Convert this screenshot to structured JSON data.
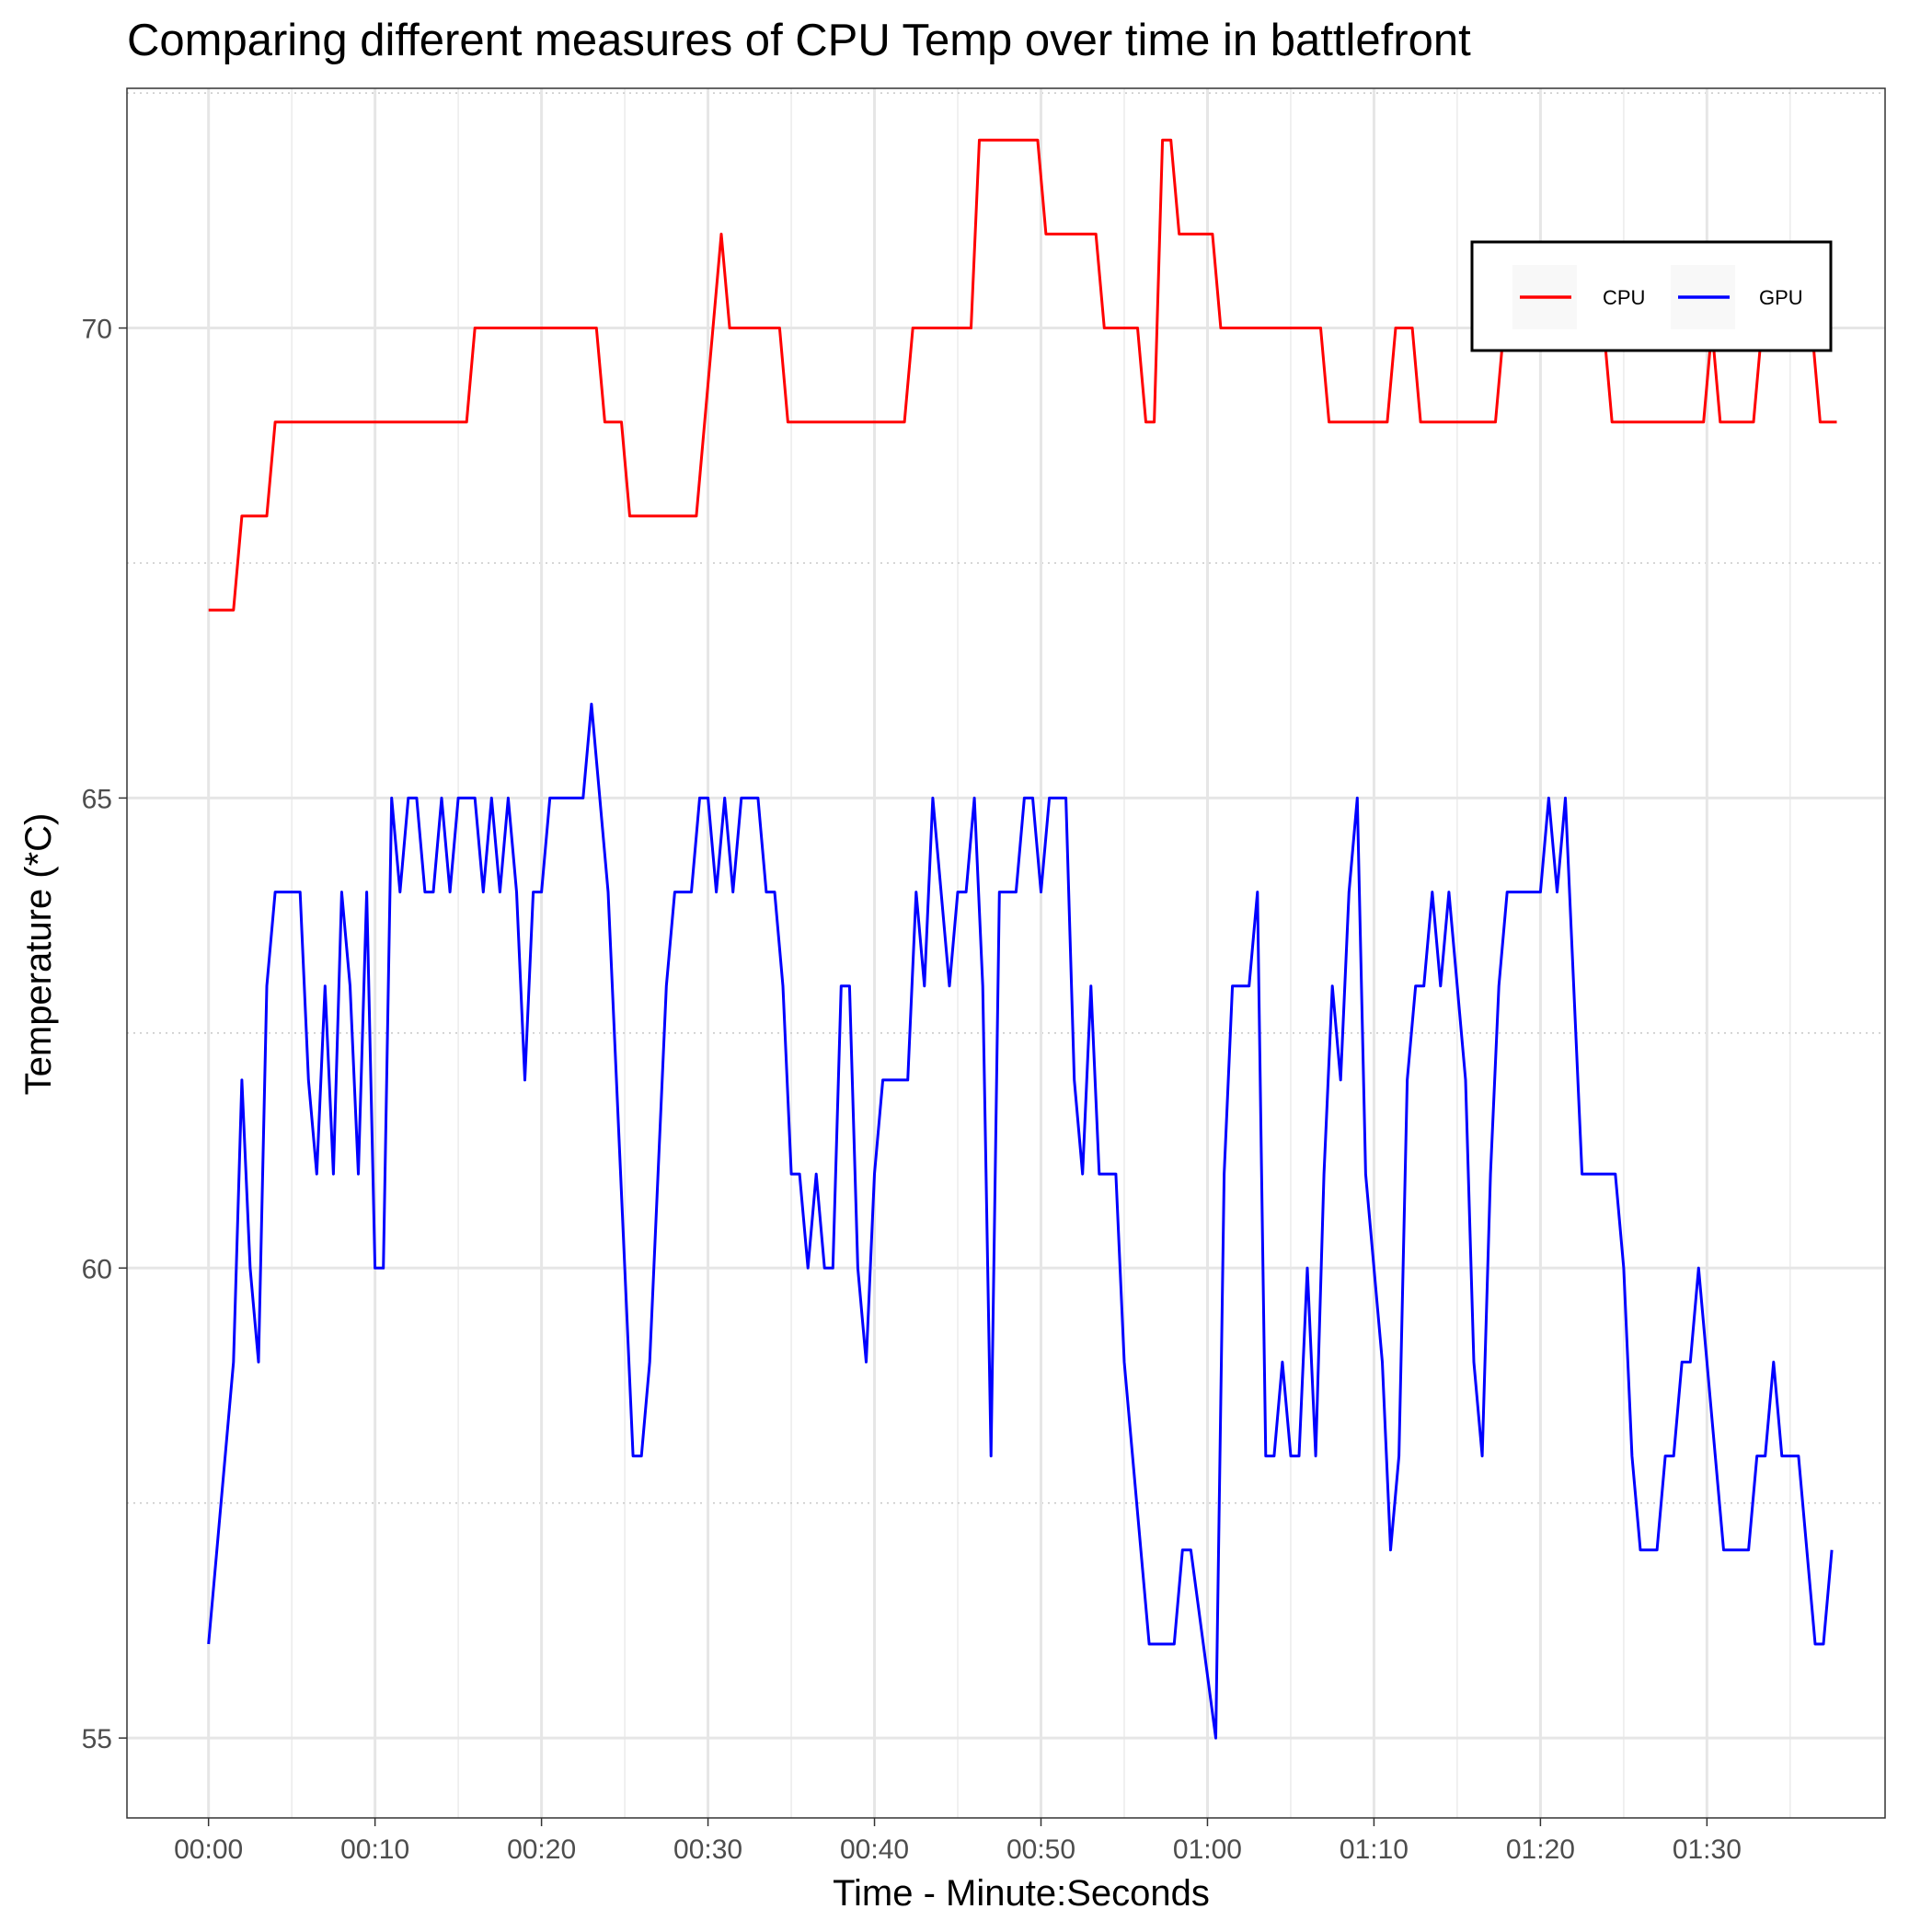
{
  "chart_data": {
    "type": "line",
    "title": "Comparing different measures of CPU Temp over time in battlefront",
    "xlabel": "Time - Minute:Seconds",
    "ylabel": "Temperature (*C)",
    "x_unit": "seconds",
    "xlim": [
      -4.9,
      100.7
    ],
    "ylim": [
      54.15,
      72.55
    ],
    "x_ticks": [
      0,
      10,
      20,
      30,
      40,
      50,
      60,
      70,
      80,
      90
    ],
    "x_tick_labels": [
      "00:00",
      "00:10",
      "00:20",
      "00:30",
      "00:40",
      "00:50",
      "01:00",
      "01:10",
      "01:20",
      "01:30"
    ],
    "y_ticks": [
      55,
      60,
      65,
      70
    ],
    "y_tick_labels": [
      "55",
      "60",
      "65",
      "70"
    ],
    "grid": true,
    "legend": {
      "position": "top-right",
      "entries": [
        "CPU",
        "GPU"
      ]
    },
    "series": [
      {
        "name": "CPU",
        "color": "#ff0000",
        "points": [
          [
            0,
            67
          ],
          [
            1.5,
            67
          ],
          [
            2,
            68
          ],
          [
            3.5,
            68
          ],
          [
            4,
            69
          ],
          [
            15.5,
            69
          ],
          [
            16,
            70
          ],
          [
            23.3,
            70
          ],
          [
            23.8,
            69
          ],
          [
            24.8,
            69
          ],
          [
            25.3,
            68
          ],
          [
            29.3,
            68
          ],
          [
            30.8,
            71
          ],
          [
            31.3,
            70
          ],
          [
            34.3,
            70
          ],
          [
            34.8,
            69
          ],
          [
            41.8,
            69
          ],
          [
            42.3,
            70
          ],
          [
            45.8,
            70
          ],
          [
            46.3,
            72
          ],
          [
            49.8,
            72
          ],
          [
            50.3,
            71
          ],
          [
            53.3,
            71
          ],
          [
            53.8,
            70
          ],
          [
            55.8,
            70
          ],
          [
            56.3,
            69
          ],
          [
            56.8,
            69
          ],
          [
            57.3,
            72
          ],
          [
            57.8,
            72
          ],
          [
            58.3,
            71
          ],
          [
            60.3,
            71
          ],
          [
            60.8,
            70
          ],
          [
            66.8,
            70
          ],
          [
            67.3,
            69
          ],
          [
            70.8,
            69
          ],
          [
            71.3,
            70
          ],
          [
            72.3,
            70
          ],
          [
            72.8,
            69
          ],
          [
            77.3,
            69
          ],
          [
            77.8,
            70
          ],
          [
            83.8,
            70
          ],
          [
            84.3,
            69
          ],
          [
            89.8,
            69
          ],
          [
            90.3,
            70
          ],
          [
            90.8,
            69
          ],
          [
            92.8,
            69
          ],
          [
            93.3,
            70
          ],
          [
            96.3,
            70
          ],
          [
            96.8,
            69
          ],
          [
            97.8,
            69
          ]
        ]
      },
      {
        "name": "GPU",
        "color": "#0000ff",
        "points": [
          [
            0,
            56
          ],
          [
            1.5,
            59
          ],
          [
            2,
            62
          ],
          [
            2.5,
            60
          ],
          [
            3,
            59
          ],
          [
            3.5,
            63
          ],
          [
            4,
            64
          ],
          [
            5.5,
            64
          ],
          [
            6,
            62
          ],
          [
            6.5,
            61
          ],
          [
            7,
            63
          ],
          [
            7.5,
            61
          ],
          [
            8,
            64
          ],
          [
            8.5,
            63
          ],
          [
            9,
            61
          ],
          [
            9.5,
            64
          ],
          [
            10,
            60
          ],
          [
            10.5,
            60
          ],
          [
            11,
            65
          ],
          [
            11.5,
            64
          ],
          [
            12,
            65
          ],
          [
            12.5,
            65
          ],
          [
            13,
            64
          ],
          [
            13.5,
            64
          ],
          [
            14,
            65
          ],
          [
            14.5,
            64
          ],
          [
            15,
            65
          ],
          [
            16,
            65
          ],
          [
            16.5,
            64
          ],
          [
            17,
            65
          ],
          [
            17.5,
            64
          ],
          [
            18,
            65
          ],
          [
            18.5,
            64
          ],
          [
            19,
            62
          ],
          [
            19.5,
            64
          ],
          [
            20,
            64
          ],
          [
            20.5,
            65
          ],
          [
            22.5,
            65
          ],
          [
            23,
            66
          ],
          [
            24,
            64
          ],
          [
            25,
            60
          ],
          [
            25.5,
            58
          ],
          [
            26,
            58
          ],
          [
            26.5,
            59
          ],
          [
            27.5,
            63
          ],
          [
            28,
            64
          ],
          [
            29,
            64
          ],
          [
            29.5,
            65
          ],
          [
            30,
            65
          ],
          [
            30.5,
            64
          ],
          [
            31,
            65
          ],
          [
            31.5,
            64
          ],
          [
            32,
            65
          ],
          [
            33,
            65
          ],
          [
            33.5,
            64
          ],
          [
            34,
            64
          ],
          [
            34.5,
            63
          ],
          [
            35,
            61
          ],
          [
            35.5,
            61
          ],
          [
            36,
            60
          ],
          [
            36.5,
            61
          ],
          [
            37,
            60
          ],
          [
            37.5,
            60
          ],
          [
            38,
            63
          ],
          [
            38.5,
            63
          ],
          [
            39,
            60
          ],
          [
            39.5,
            59
          ],
          [
            40,
            61
          ],
          [
            40.5,
            62
          ],
          [
            42,
            62
          ],
          [
            42.5,
            64
          ],
          [
            43,
            63
          ],
          [
            43.5,
            65
          ],
          [
            44.5,
            63
          ],
          [
            45,
            64
          ],
          [
            45.5,
            64
          ],
          [
            46,
            65
          ],
          [
            46.5,
            63
          ],
          [
            47,
            58
          ],
          [
            47.5,
            64
          ],
          [
            48.5,
            64
          ],
          [
            49,
            65
          ],
          [
            49.5,
            65
          ],
          [
            50,
            64
          ],
          [
            50.5,
            65
          ],
          [
            51.5,
            65
          ],
          [
            52,
            62
          ],
          [
            52.5,
            61
          ],
          [
            53,
            63
          ],
          [
            53.5,
            61
          ],
          [
            54.5,
            61
          ],
          [
            55,
            59
          ],
          [
            56.5,
            56
          ],
          [
            58,
            56
          ],
          [
            58.5,
            57
          ],
          [
            59,
            57
          ],
          [
            60.5,
            55
          ],
          [
            61,
            61
          ],
          [
            61.5,
            63
          ],
          [
            62.5,
            63
          ],
          [
            63,
            64
          ],
          [
            63.5,
            58
          ],
          [
            64,
            58
          ],
          [
            64.5,
            59
          ],
          [
            65,
            58
          ],
          [
            65.5,
            58
          ],
          [
            66,
            60
          ],
          [
            66.5,
            58
          ],
          [
            67,
            61
          ],
          [
            67.5,
            63
          ],
          [
            68,
            62
          ],
          [
            68.5,
            64
          ],
          [
            69,
            65
          ],
          [
            69.5,
            61
          ],
          [
            70.5,
            59
          ],
          [
            71,
            57
          ],
          [
            71.5,
            58
          ],
          [
            72,
            62
          ],
          [
            72.5,
            63
          ],
          [
            73,
            63
          ],
          [
            73.5,
            64
          ],
          [
            74,
            63
          ],
          [
            74.5,
            64
          ],
          [
            75.5,
            62
          ],
          [
            76,
            59
          ],
          [
            76.5,
            58
          ],
          [
            77,
            61
          ],
          [
            77.5,
            63
          ],
          [
            78,
            64
          ],
          [
            80,
            64
          ],
          [
            80.5,
            65
          ],
          [
            81,
            64
          ],
          [
            81.5,
            65
          ],
          [
            82.5,
            61
          ],
          [
            84.5,
            61
          ],
          [
            85,
            60
          ],
          [
            85.5,
            58
          ],
          [
            86,
            57
          ],
          [
            87,
            57
          ],
          [
            87.5,
            58
          ],
          [
            88,
            58
          ],
          [
            88.5,
            59
          ],
          [
            89,
            59
          ],
          [
            89.5,
            60
          ],
          [
            91,
            57
          ],
          [
            92.5,
            57
          ],
          [
            93,
            58
          ],
          [
            93.5,
            58
          ],
          [
            94,
            59
          ],
          [
            94.5,
            58
          ],
          [
            95.5,
            58
          ],
          [
            96.5,
            56
          ],
          [
            97,
            56
          ],
          [
            97.5,
            57
          ]
        ]
      }
    ]
  }
}
